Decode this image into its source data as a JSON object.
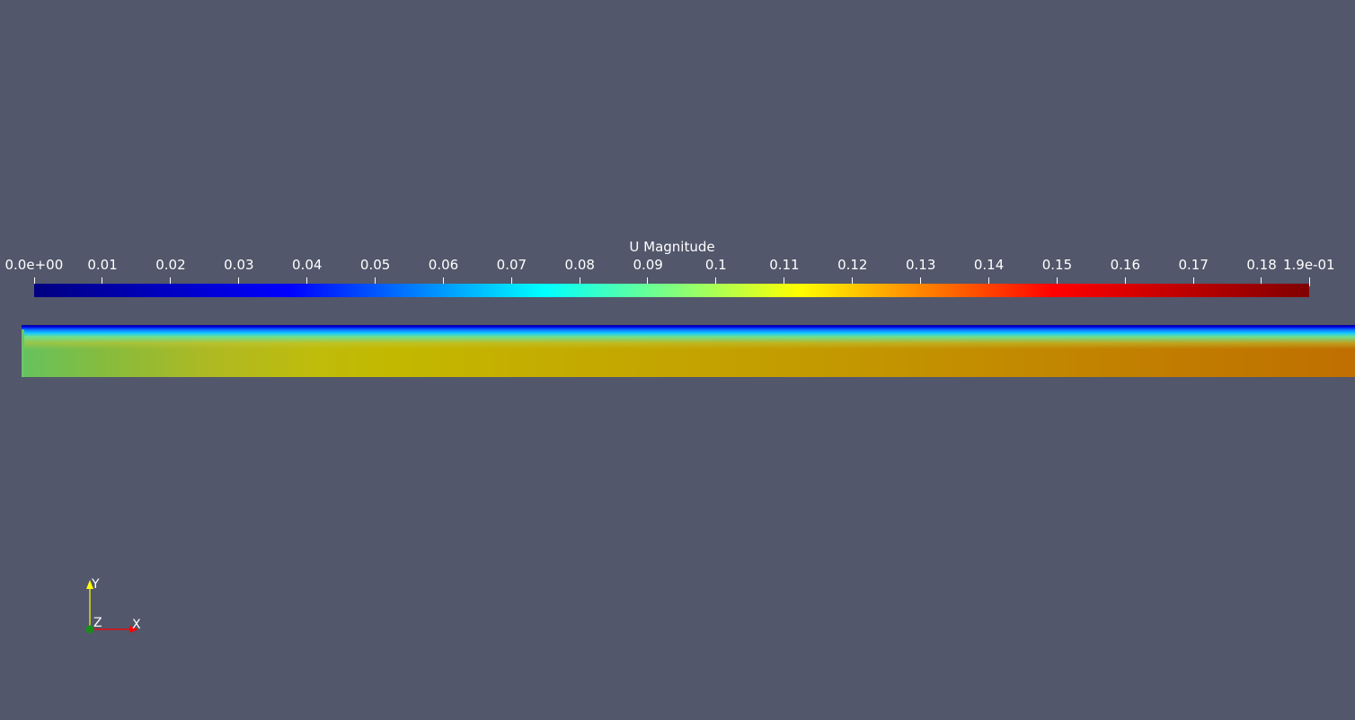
{
  "colorbar": {
    "title": "U Magnitude",
    "tick_labels": [
      "0.0e+00",
      "0.01",
      "0.02",
      "0.03",
      "0.04",
      "0.05",
      "0.06",
      "0.07",
      "0.08",
      "0.09",
      "0.1",
      "0.11",
      "0.12",
      "0.13",
      "0.14",
      "0.15",
      "0.16",
      "0.17",
      "0.18",
      "1.9e-01"
    ],
    "tick_values": [
      0,
      0.01,
      0.02,
      0.03,
      0.04,
      0.05,
      0.06,
      0.07,
      0.08,
      0.09,
      0.1,
      0.11,
      0.12,
      0.13,
      0.14,
      0.15,
      0.16,
      0.17,
      0.18,
      0.187
    ],
    "range": [
      0,
      0.187
    ],
    "colormap": [
      "#000080",
      "#0000ff",
      "#00ffff",
      "#ffff00",
      "#ff0000",
      "#800000"
    ]
  },
  "axes_triad": {
    "x_label": "X",
    "y_label": "Y",
    "z_label": "Z",
    "x_color": "#ff0000",
    "y_color": "#ffff00",
    "z_color": "#1a8c1a"
  },
  "background_color": "#52576b"
}
